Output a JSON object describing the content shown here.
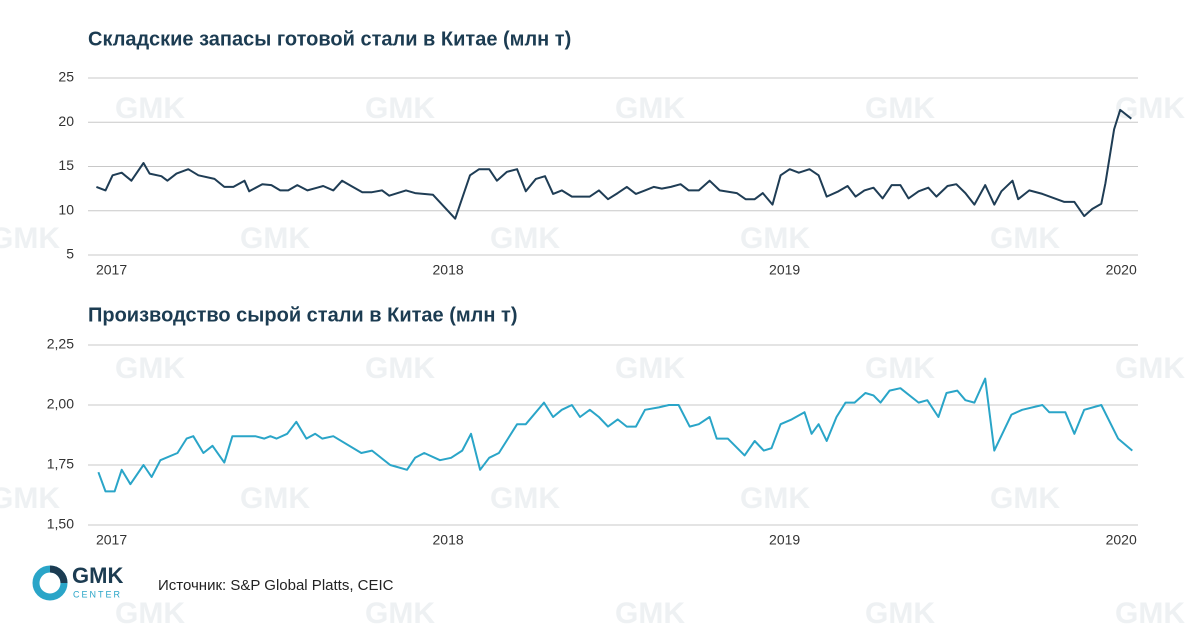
{
  "chart_data": [
    {
      "type": "line",
      "title": "Складские запасы готовой стали в Китае (млн т)",
      "color": "#1f3d55",
      "xlim": [
        2016.93,
        2020.05
      ],
      "xticks": [
        2017,
        2018,
        2019,
        2020
      ],
      "ylim": [
        5,
        25
      ],
      "yticks": [
        5,
        10,
        15,
        20,
        25
      ],
      "grid": true,
      "x": [
        2016.955,
        2016.982,
        2017.003,
        2017.03,
        2017.059,
        2017.095,
        2017.113,
        2017.148,
        2017.166,
        2017.193,
        2017.228,
        2017.258,
        2017.306,
        2017.335,
        2017.362,
        2017.395,
        2017.409,
        2017.448,
        2017.475,
        2017.501,
        2017.525,
        2017.552,
        2017.582,
        2017.611,
        2017.629,
        2017.659,
        2017.685,
        2017.712,
        2017.745,
        2017.774,
        2017.804,
        2017.825,
        2017.875,
        2017.902,
        2017.955,
        2018.021,
        2018.065,
        2018.092,
        2018.122,
        2018.145,
        2018.175,
        2018.205,
        2018.231,
        2018.261,
        2018.288,
        2018.312,
        2018.338,
        2018.368,
        2018.395,
        2018.421,
        2018.448,
        2018.475,
        2018.504,
        2018.531,
        2018.558,
        2018.585,
        2018.611,
        2018.635,
        2018.662,
        2018.691,
        2018.715,
        2018.745,
        2018.777,
        2018.807,
        2018.858,
        2018.884,
        2018.911,
        2018.935,
        2018.964,
        2018.988,
        2019.015,
        2019.042,
        2019.074,
        2019.101,
        2019.125,
        2019.16,
        2019.187,
        2019.211,
        2019.237,
        2019.264,
        2019.291,
        2019.318,
        2019.344,
        2019.368,
        2019.398,
        2019.427,
        2019.451,
        2019.484,
        2019.51,
        2019.537,
        2019.564,
        2019.596,
        2019.623,
        2019.644,
        2019.677,
        2019.694,
        2019.727,
        2019.766,
        2019.831,
        2019.861,
        2019.89,
        2019.914,
        2019.941,
        2019.953,
        2019.979,
        2019.997,
        2020.03
      ],
      "values": [
        12.7,
        12.3,
        14.0,
        14.3,
        13.4,
        15.4,
        14.2,
        13.9,
        13.4,
        14.2,
        14.7,
        14.0,
        13.6,
        12.7,
        12.7,
        13.4,
        12.2,
        13.0,
        12.9,
        12.3,
        12.3,
        12.9,
        12.3,
        12.6,
        12.8,
        12.3,
        13.4,
        12.8,
        12.1,
        12.1,
        12.3,
        11.7,
        12.3,
        12.0,
        11.8,
        9.1,
        14.0,
        14.7,
        14.7,
        13.4,
        14.4,
        14.7,
        12.2,
        13.6,
        13.9,
        11.9,
        12.3,
        11.6,
        11.6,
        11.6,
        12.3,
        11.3,
        12.0,
        12.7,
        11.9,
        12.3,
        12.7,
        12.5,
        12.7,
        13.0,
        12.3,
        12.3,
        13.4,
        12.3,
        12.0,
        11.3,
        11.3,
        12.0,
        10.7,
        14.0,
        14.7,
        14.3,
        14.7,
        14.0,
        11.6,
        12.2,
        12.8,
        11.6,
        12.3,
        12.6,
        11.4,
        12.9,
        12.9,
        11.4,
        12.2,
        12.6,
        11.6,
        12.8,
        13.0,
        12.0,
        10.7,
        12.9,
        10.7,
        12.2,
        13.4,
        11.3,
        12.3,
        11.9,
        11.0,
        11.0,
        9.4,
        10.2,
        10.8,
        13.1,
        19.2,
        21.4,
        20.4
      ]
    },
    {
      "type": "line",
      "title": "Производство сырой стали в Китае (млн т)",
      "color": "#2aa5c8",
      "xlim": [
        2016.93,
        2020.05
      ],
      "xticks": [
        2017,
        2018,
        2019,
        2020
      ],
      "ylim": [
        1.5,
        2.25
      ],
      "yticks": [
        {
          "value": 1.5,
          "label": "1,50"
        },
        {
          "value": 1.75,
          "label": "1,75"
        },
        {
          "value": 2.0,
          "label": "2,00"
        },
        {
          "value": 2.25,
          "label": "2,25"
        }
      ],
      "grid": true,
      "x": [
        2016.961,
        2016.982,
        2017.009,
        2017.03,
        2017.056,
        2017.095,
        2017.119,
        2017.145,
        2017.196,
        2017.223,
        2017.243,
        2017.273,
        2017.3,
        2017.335,
        2017.359,
        2017.427,
        2017.454,
        2017.472,
        2017.49,
        2017.522,
        2017.549,
        2017.579,
        2017.605,
        2017.626,
        2017.659,
        2017.742,
        2017.774,
        2017.828,
        2017.878,
        2017.902,
        2017.929,
        2017.976,
        2018.009,
        2018.042,
        2018.068,
        2018.095,
        2018.122,
        2018.151,
        2018.178,
        2018.205,
        2018.231,
        2018.285,
        2018.312,
        2018.338,
        2018.368,
        2018.392,
        2018.421,
        2018.448,
        2018.475,
        2018.504,
        2018.531,
        2018.558,
        2018.585,
        2018.626,
        2018.656,
        2018.685,
        2018.718,
        2018.745,
        2018.777,
        2018.798,
        2018.831,
        2018.881,
        2018.911,
        2018.938,
        2018.961,
        2018.988,
        2019.021,
        2019.059,
        2019.08,
        2019.101,
        2019.125,
        2019.154,
        2019.181,
        2019.208,
        2019.24,
        2019.264,
        2019.285,
        2019.312,
        2019.344,
        2019.398,
        2019.424,
        2019.457,
        2019.481,
        2019.513,
        2019.537,
        2019.564,
        2019.596,
        2019.623,
        2019.674,
        2019.706,
        2019.766,
        2019.786,
        2019.834,
        2019.861,
        2019.89,
        2019.941,
        2019.991,
        2020.033
      ],
      "values": [
        1.72,
        1.64,
        1.64,
        1.73,
        1.67,
        1.75,
        1.7,
        1.77,
        1.8,
        1.86,
        1.87,
        1.8,
        1.83,
        1.76,
        1.87,
        1.87,
        1.86,
        1.87,
        1.86,
        1.88,
        1.93,
        1.86,
        1.88,
        1.86,
        1.87,
        1.8,
        1.81,
        1.75,
        1.73,
        1.78,
        1.8,
        1.77,
        1.78,
        1.81,
        1.88,
        1.73,
        1.78,
        1.8,
        1.86,
        1.92,
        1.92,
        2.01,
        1.95,
        1.98,
        2.0,
        1.95,
        1.98,
        1.95,
        1.91,
        1.94,
        1.91,
        1.91,
        1.98,
        1.99,
        2.0,
        2.0,
        1.91,
        1.92,
        1.95,
        1.86,
        1.86,
        1.79,
        1.85,
        1.81,
        1.82,
        1.92,
        1.94,
        1.97,
        1.88,
        1.92,
        1.85,
        1.95,
        2.01,
        2.01,
        2.05,
        2.04,
        2.01,
        2.06,
        2.07,
        2.01,
        2.02,
        1.95,
        2.05,
        2.06,
        2.02,
        2.01,
        2.11,
        1.81,
        1.96,
        1.98,
        2.0,
        1.97,
        1.97,
        1.88,
        1.98,
        2.0,
        1.86,
        1.81
      ]
    }
  ],
  "source": "Источник: S&P Global Platts, CEIC",
  "logo": {
    "name": "GMK",
    "sub": "CENTER"
  },
  "watermark": "GMK"
}
